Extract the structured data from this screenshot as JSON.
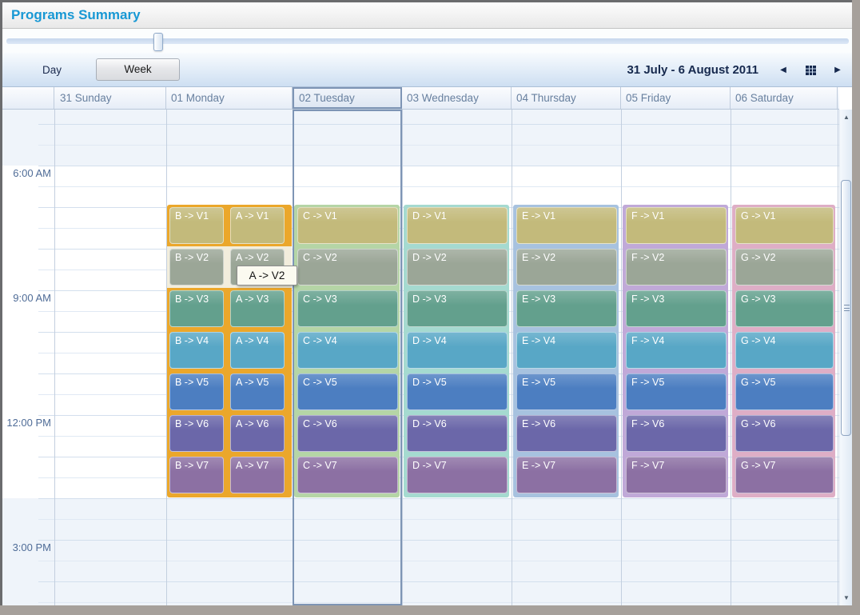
{
  "window": {
    "title": "Programs Summary"
  },
  "toolbar": {
    "day_label": "Day",
    "week_label": "Week",
    "date_range": "31 July - 6 August 2011"
  },
  "icons": {
    "prev": "◀",
    "next": "▶",
    "calendar": "calendar-grid",
    "scroll_up": "▲",
    "scroll_down": "▼"
  },
  "time_labels": [
    "6:00 AM",
    "9:00 AM",
    "12:00 PM",
    "3:00 PM"
  ],
  "days": [
    {
      "header": "31 Sunday",
      "lane_color": null,
      "lanes": []
    },
    {
      "header": "01 Monday",
      "lane_color": "#EBA72B",
      "lanes": [
        [
          "B -> V1",
          "B -> V2",
          "B -> V3",
          "B -> V4",
          "B -> V5",
          "B -> V6",
          "B -> V7"
        ],
        [
          "A -> V1",
          "A -> V2",
          "A -> V3",
          "A -> V4",
          "A -> V5",
          "A -> V6",
          "A -> V7"
        ]
      ]
    },
    {
      "header": "02 Tuesday",
      "selected": true,
      "lane_color": "#B5D5A6",
      "lanes": [
        [
          "C -> V1",
          "C -> V2",
          "C -> V3",
          "C -> V4",
          "C -> V5",
          "C -> V6",
          "C -> V7"
        ]
      ]
    },
    {
      "header": "03 Wednesday",
      "lane_color": "#A5DAD0",
      "lanes": [
        [
          "D -> V1",
          "D -> V2",
          "D -> V3",
          "D -> V4",
          "D -> V5",
          "D -> V6",
          "D -> V7"
        ]
      ]
    },
    {
      "header": "04 Thursday",
      "lane_color": "#A7C2DF",
      "lanes": [
        [
          "E -> V1",
          "E -> V2",
          "E -> V3",
          "E -> V4",
          "E -> V5",
          "E -> V6",
          "E -> V7"
        ]
      ]
    },
    {
      "header": "05 Friday",
      "lane_color": "#C0A9D8",
      "lanes": [
        [
          "F -> V1",
          "F -> V2",
          "F -> V3",
          "F -> V4",
          "F -> V5",
          "F -> V6",
          "F -> V7"
        ]
      ]
    },
    {
      "header": "06 Saturday",
      "lane_color": "#DEAEC6",
      "lanes": [
        [
          "G -> V1",
          "G -> V2",
          "G -> V3",
          "G -> V4",
          "G -> V5",
          "G -> V6",
          "G -> V7"
        ]
      ]
    }
  ],
  "colors": {
    "title_accent": "#1898D4",
    "selected_day_border": "#7E95B5",
    "monday_hover_highlight": "#F2EDDC",
    "slots": [
      "#C3BA7B",
      "#9BA697",
      "#63A08D",
      "#58A7C6",
      "#4C7EC1",
      "#6B67A9",
      "#8C70A3"
    ]
  },
  "tooltip": {
    "text": "A -> V2"
  }
}
